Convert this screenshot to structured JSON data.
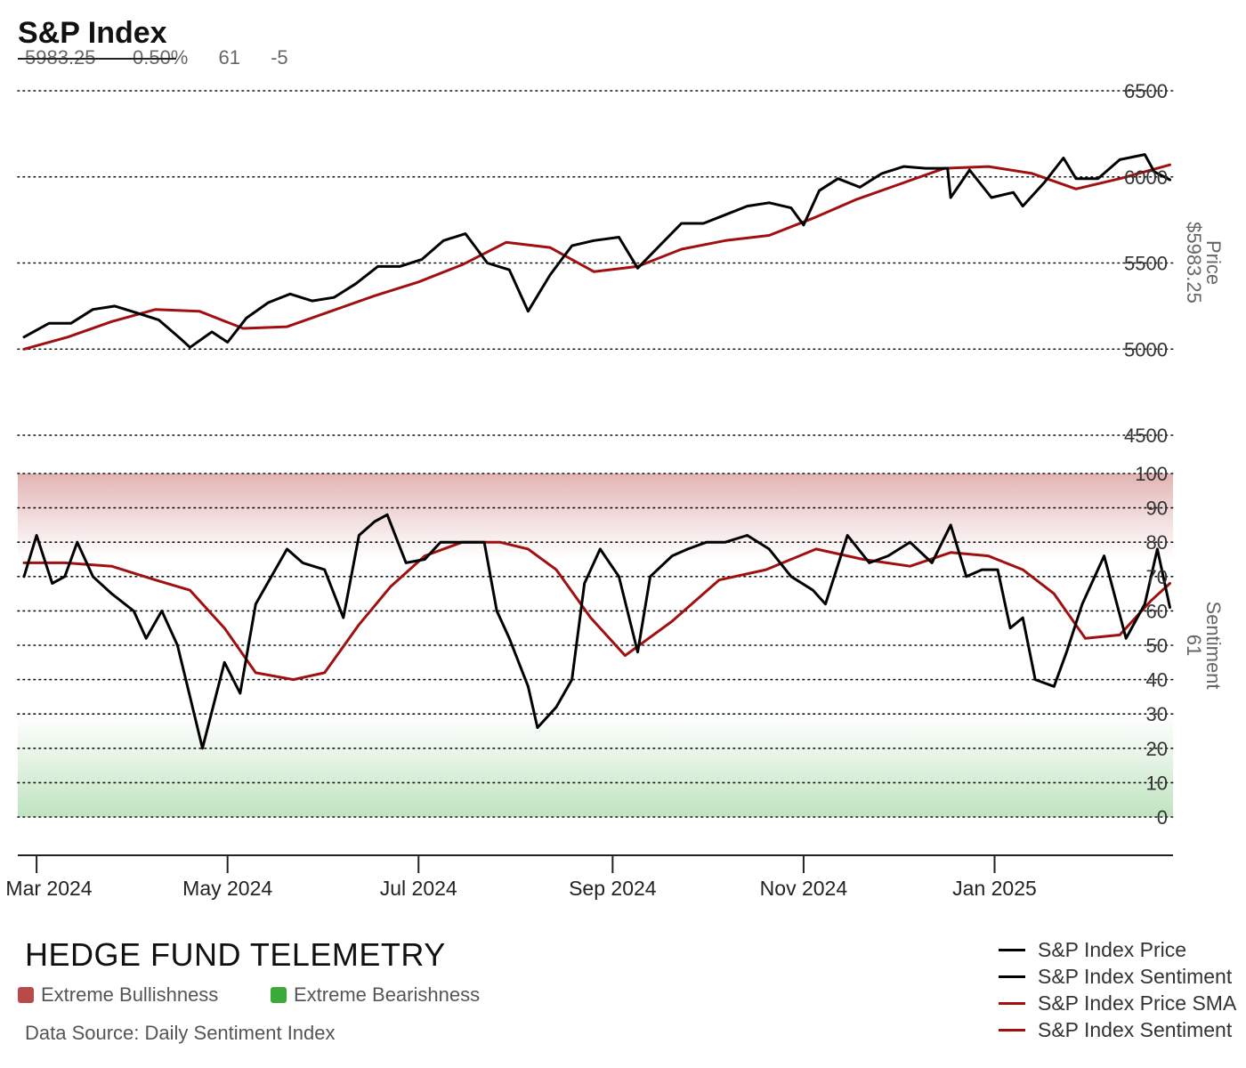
{
  "header": {
    "title": "S&P Index",
    "price": "5983.25",
    "change_pct": "-0.50%",
    "sentiment": "61",
    "sentiment_change": "-5"
  },
  "footer": {
    "brand": "HEDGE FUND TELEMETRY",
    "bull_label": "Extreme Bullishness",
    "bear_label": "Extreme Bearishness",
    "bull_color": "#b84a4a",
    "bear_color": "#3aaa3a",
    "source": "Data Source: Daily Sentiment Index"
  },
  "legend": [
    {
      "label": "S&P Index Price",
      "color": "#000000"
    },
    {
      "label": "S&P Index Sentiment",
      "color": "#000000"
    },
    {
      "label": "S&P Index Price SMA",
      "color": "#a01010"
    },
    {
      "label": "S&P Index Sentiment",
      "color": "#a01010"
    }
  ],
  "chart_data": [
    {
      "type": "line",
      "title": "S&P Index",
      "ylabel": "Price",
      "ylabel_value": "$5983.25",
      "ylim": [
        4500,
        6500
      ],
      "yticks": [
        4500,
        5000,
        5500,
        6000,
        6500
      ],
      "grid": true,
      "series": [
        {
          "name": "S&P Index Price",
          "color": "#000000",
          "x": [
            "2024-02-26",
            "2024-03-05",
            "2024-03-12",
            "2024-03-19",
            "2024-03-26",
            "2024-04-02",
            "2024-04-09",
            "2024-04-16",
            "2024-04-19",
            "2024-04-26",
            "2024-05-01",
            "2024-05-07",
            "2024-05-14",
            "2024-05-21",
            "2024-05-28",
            "2024-06-04",
            "2024-06-11",
            "2024-06-18",
            "2024-06-25",
            "2024-07-02",
            "2024-07-09",
            "2024-07-16",
            "2024-07-23",
            "2024-07-30",
            "2024-08-05",
            "2024-08-12",
            "2024-08-19",
            "2024-08-26",
            "2024-09-03",
            "2024-09-09",
            "2024-09-16",
            "2024-09-23",
            "2024-09-30",
            "2024-10-07",
            "2024-10-14",
            "2024-10-21",
            "2024-10-28",
            "2024-11-01",
            "2024-11-06",
            "2024-11-12",
            "2024-11-19",
            "2024-11-26",
            "2024-12-03",
            "2024-12-10",
            "2024-12-17",
            "2024-12-18",
            "2024-12-24",
            "2024-12-31",
            "2025-01-07",
            "2025-01-10",
            "2025-01-17",
            "2025-01-23",
            "2025-01-27",
            "2025-02-03",
            "2025-02-10",
            "2025-02-18",
            "2025-02-21",
            "2025-02-26"
          ],
          "values": [
            5070,
            5150,
            5150,
            5230,
            5250,
            5210,
            5170,
            5060,
            5010,
            5100,
            5040,
            5180,
            5270,
            5320,
            5280,
            5300,
            5380,
            5480,
            5480,
            5520,
            5630,
            5670,
            5500,
            5460,
            5220,
            5430,
            5600,
            5630,
            5650,
            5470,
            5600,
            5730,
            5730,
            5780,
            5830,
            5850,
            5820,
            5720,
            5920,
            5990,
            5940,
            6020,
            6060,
            6050,
            6050,
            5880,
            6040,
            5880,
            5910,
            5830,
            5970,
            6110,
            5990,
            5990,
            6100,
            6130,
            6030,
            5983
          ]
        },
        {
          "name": "S&P Index Price SMA",
          "color": "#a01010",
          "x": [
            "2024-02-26",
            "2024-03-11",
            "2024-03-25",
            "2024-04-08",
            "2024-04-22",
            "2024-05-06",
            "2024-05-20",
            "2024-06-03",
            "2024-06-17",
            "2024-07-01",
            "2024-07-15",
            "2024-07-29",
            "2024-08-12",
            "2024-08-26",
            "2024-09-09",
            "2024-09-23",
            "2024-10-07",
            "2024-10-21",
            "2024-11-04",
            "2024-11-18",
            "2024-12-02",
            "2024-12-16",
            "2024-12-30",
            "2025-01-13",
            "2025-01-27",
            "2025-02-10",
            "2025-02-26"
          ],
          "values": [
            5000,
            5070,
            5160,
            5230,
            5220,
            5120,
            5130,
            5220,
            5310,
            5390,
            5490,
            5620,
            5590,
            5450,
            5480,
            5580,
            5630,
            5660,
            5760,
            5870,
            5960,
            6050,
            6060,
            6020,
            5930,
            5990,
            6070
          ]
        }
      ]
    },
    {
      "type": "line",
      "ylabel": "Sentiment",
      "ylabel_value": "61",
      "ylim": [
        0,
        100
      ],
      "yticks": [
        0,
        10,
        20,
        30,
        40,
        50,
        60,
        70,
        80,
        90,
        100
      ],
      "grid": true,
      "xticks": [
        "Mar 2024",
        "May 2024",
        "Jul 2024",
        "Sep 2024",
        "Nov 2024",
        "Jan 2025"
      ],
      "bands": [
        {
          "from": 75,
          "to": 100,
          "meaning": "Extreme Bullishness"
        },
        {
          "from": 0,
          "to": 30,
          "meaning": "Extreme Bearishness"
        }
      ],
      "series": [
        {
          "name": "S&P Index Sentiment",
          "color": "#000000",
          "x": [
            "2024-02-26",
            "2024-03-01",
            "2024-03-06",
            "2024-03-10",
            "2024-03-14",
            "2024-03-19",
            "2024-03-25",
            "2024-04-01",
            "2024-04-05",
            "2024-04-10",
            "2024-04-15",
            "2024-04-19",
            "2024-04-23",
            "2024-04-30",
            "2024-05-05",
            "2024-05-10",
            "2024-05-15",
            "2024-05-20",
            "2024-05-25",
            "2024-06-01",
            "2024-06-07",
            "2024-06-12",
            "2024-06-17",
            "2024-06-21",
            "2024-06-27",
            "2024-07-03",
            "2024-07-08",
            "2024-07-15",
            "2024-07-22",
            "2024-07-26",
            "2024-07-30",
            "2024-08-05",
            "2024-08-08",
            "2024-08-14",
            "2024-08-19",
            "2024-08-23",
            "2024-08-28",
            "2024-09-03",
            "2024-09-09",
            "2024-09-13",
            "2024-09-20",
            "2024-09-25",
            "2024-10-01",
            "2024-10-07",
            "2024-10-14",
            "2024-10-21",
            "2024-10-28",
            "2024-11-04",
            "2024-11-08",
            "2024-11-15",
            "2024-11-22",
            "2024-11-28",
            "2024-12-05",
            "2024-12-12",
            "2024-12-18",
            "2024-12-23",
            "2024-12-28",
            "2025-01-02",
            "2025-01-06",
            "2025-01-10",
            "2025-01-14",
            "2025-01-20",
            "2025-01-24",
            "2025-01-29",
            "2025-02-05",
            "2025-02-12",
            "2025-02-18",
            "2025-02-22",
            "2025-02-26"
          ],
          "values": [
            70,
            82,
            68,
            70,
            80,
            70,
            65,
            60,
            52,
            60,
            50,
            35,
            20,
            45,
            36,
            62,
            70,
            78,
            74,
            72,
            58,
            82,
            86,
            88,
            74,
            75,
            80,
            80,
            80,
            60,
            52,
            38,
            26,
            32,
            40,
            68,
            78,
            70,
            48,
            70,
            76,
            78,
            80,
            80,
            82,
            78,
            70,
            66,
            62,
            82,
            74,
            76,
            80,
            74,
            85,
            70,
            72,
            72,
            55,
            58,
            40,
            38,
            48,
            62,
            76,
            52,
            62,
            78,
            61
          ]
        },
        {
          "name": "S&P Index Sentiment",
          "color": "#a01010",
          "x": [
            "2024-02-26",
            "2024-03-10",
            "2024-03-25",
            "2024-04-08",
            "2024-04-19",
            "2024-04-30",
            "2024-05-10",
            "2024-05-22",
            "2024-06-01",
            "2024-06-12",
            "2024-06-22",
            "2024-07-03",
            "2024-07-15",
            "2024-07-27",
            "2024-08-05",
            "2024-08-14",
            "2024-08-25",
            "2024-09-05",
            "2024-09-20",
            "2024-10-05",
            "2024-10-20",
            "2024-11-05",
            "2024-11-20",
            "2024-12-05",
            "2024-12-18",
            "2024-12-30",
            "2025-01-10",
            "2025-01-20",
            "2025-01-30",
            "2025-02-10",
            "2025-02-20",
            "2025-02-26"
          ],
          "values": [
            74,
            74,
            73,
            69,
            66,
            55,
            42,
            40,
            42,
            56,
            67,
            76,
            80,
            80,
            78,
            72,
            58,
            47,
            57,
            69,
            72,
            78,
            75,
            73,
            77,
            76,
            72,
            65,
            52,
            53,
            63,
            68
          ]
        }
      ]
    }
  ]
}
